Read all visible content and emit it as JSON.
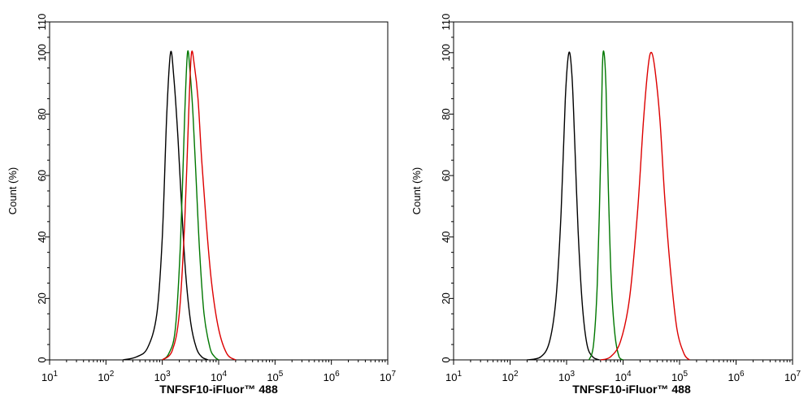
{
  "chart_data": [
    {
      "type": "line",
      "xscale": "log",
      "xlim": [
        10,
        10000000
      ],
      "ylim": [
        0,
        110
      ],
      "xlabel": "TNFSF10-iFluor™ 488",
      "ylabel": "Count  (%)",
      "x_ticks": [
        {
          "base": "10",
          "exp": "1"
        },
        {
          "base": "10",
          "exp": "2"
        },
        {
          "base": "10",
          "exp": "3"
        },
        {
          "base": "10",
          "exp": "4"
        },
        {
          "base": "10",
          "exp": "5"
        },
        {
          "base": "10",
          "exp": "6"
        },
        {
          "base": "10",
          "exp": "7"
        }
      ],
      "y_ticks": [
        "0",
        "20",
        "40",
        "60",
        "80",
        "100",
        "110"
      ],
      "series": [
        {
          "color": "#000000",
          "x": [
            200,
            350,
            550,
            800,
            1000,
            1200,
            1400,
            1600,
            1900,
            2200,
            2600,
            3200,
            4000,
            5000,
            6500
          ],
          "y": [
            0,
            1,
            4,
            15,
            40,
            80,
            100,
            92,
            72,
            50,
            28,
            12,
            4,
            1,
            0
          ]
        },
        {
          "color": "#007700",
          "x": [
            1000,
            1300,
            1700,
            2100,
            2500,
            2800,
            3100,
            3500,
            4000,
            4600,
            5500,
            7000,
            8500,
            10000
          ],
          "y": [
            0,
            2,
            10,
            38,
            80,
            100,
            94,
            80,
            58,
            35,
            15,
            4,
            1,
            0
          ]
        },
        {
          "color": "#dd0000",
          "x": [
            1000,
            1500,
            2000,
            2500,
            3000,
            3300,
            3700,
            4300,
            5000,
            6000,
            7500,
            10000,
            14000,
            20000
          ],
          "y": [
            0,
            3,
            15,
            45,
            85,
            100,
            96,
            85,
            65,
            45,
            25,
            10,
            2,
            0
          ]
        }
      ]
    },
    {
      "type": "line",
      "xscale": "log",
      "xlim": [
        10,
        10000000
      ],
      "ylim": [
        0,
        110
      ],
      "xlabel": "TNFSF10-iFluor™ 488",
      "ylabel": "Count  (%)",
      "x_ticks": [
        {
          "base": "10",
          "exp": "1"
        },
        {
          "base": "10",
          "exp": "2"
        },
        {
          "base": "10",
          "exp": "3"
        },
        {
          "base": "10",
          "exp": "4"
        },
        {
          "base": "10",
          "exp": "5"
        },
        {
          "base": "10",
          "exp": "6"
        },
        {
          "base": "10",
          "exp": "7"
        }
      ],
      "y_ticks": [
        "0",
        "20",
        "40",
        "60",
        "80",
        "100",
        "110"
      ],
      "series": [
        {
          "color": "#000000",
          "x": [
            200,
            350,
            500,
            650,
            800,
            950,
            1100,
            1250,
            1400,
            1600,
            1900,
            2300,
            2900,
            3800
          ],
          "y": [
            0,
            1,
            6,
            20,
            48,
            85,
            100,
            92,
            70,
            42,
            18,
            5,
            1,
            0
          ]
        },
        {
          "color": "#007700",
          "x": [
            2500,
            3000,
            3500,
            4000,
            4300,
            4600,
            5000,
            5500,
            6200,
            7200,
            8500,
            10000
          ],
          "y": [
            0,
            5,
            25,
            65,
            95,
            100,
            88,
            55,
            25,
            8,
            1,
            0
          ]
        },
        {
          "color": "#dd0000",
          "x": [
            4000,
            6000,
            9000,
            13000,
            18000,
            23000,
            28000,
            32000,
            37000,
            45000,
            55000,
            70000,
            90000,
            120000,
            150000
          ],
          "y": [
            0,
            1,
            6,
            20,
            48,
            78,
            96,
            100,
            94,
            78,
            52,
            28,
            10,
            2,
            0
          ]
        }
      ]
    }
  ]
}
